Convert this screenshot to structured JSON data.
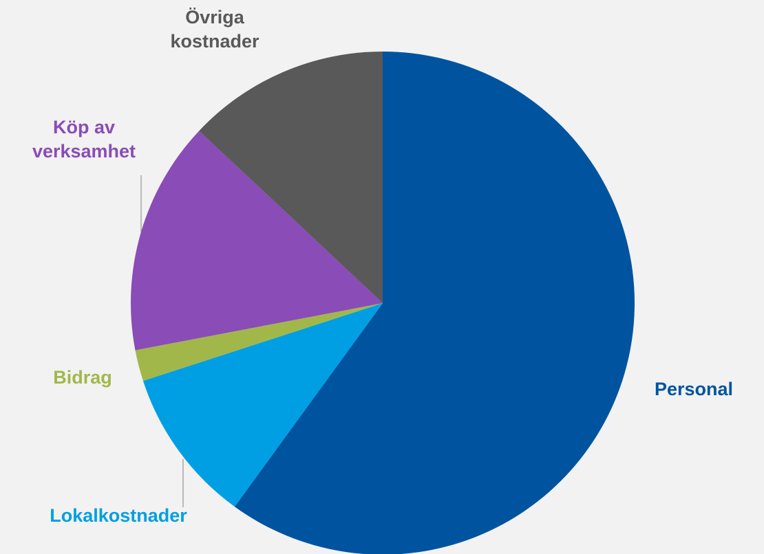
{
  "chart_data": {
    "type": "pie",
    "categories": [
      "Personal",
      "Lokalkostnader",
      "Bidrag",
      "Köp av verksamhet",
      "Övriga kostnader"
    ],
    "values": [
      60,
      10,
      2,
      15,
      13
    ],
    "colors": [
      "#00549f",
      "#009fe3",
      "#a2b74a",
      "#8a4cb6",
      "#595959"
    ]
  }
}
